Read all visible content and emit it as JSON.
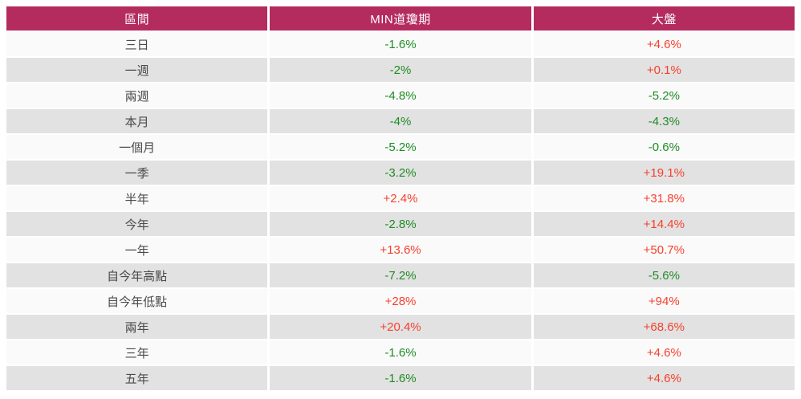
{
  "colors": {
    "header_bg": "#b42b5e",
    "header_text": "#ffffff",
    "up_red": "#f7402e",
    "down_green": "#1f8b24",
    "label_text": "#4a4a4a",
    "row_odd": "#fafafa",
    "row_even": "#e2e2e2"
  },
  "table": {
    "columns": [
      "區間",
      "MIN道瓊期",
      "大盤"
    ],
    "rows": [
      {
        "label": "三日",
        "min_dow": "-1.6%",
        "market": "+4.6%"
      },
      {
        "label": "一週",
        "min_dow": "-2%",
        "market": "+0.1%"
      },
      {
        "label": "兩週",
        "min_dow": "-4.8%",
        "market": "-5.2%"
      },
      {
        "label": "本月",
        "min_dow": "-4%",
        "market": "-4.3%"
      },
      {
        "label": "一個月",
        "min_dow": "-5.2%",
        "market": "-0.6%"
      },
      {
        "label": "一季",
        "min_dow": "-3.2%",
        "market": "+19.1%"
      },
      {
        "label": "半年",
        "min_dow": "+2.4%",
        "market": "+31.8%"
      },
      {
        "label": "今年",
        "min_dow": "-2.8%",
        "market": "+14.4%"
      },
      {
        "label": "一年",
        "min_dow": "+13.6%",
        "market": "+50.7%"
      },
      {
        "label": "自今年高點",
        "min_dow": "-7.2%",
        "market": "-5.6%"
      },
      {
        "label": "自今年低點",
        "min_dow": "+28%",
        "market": "+94%"
      },
      {
        "label": "兩年",
        "min_dow": "+20.4%",
        "market": "+68.6%"
      },
      {
        "label": "三年",
        "min_dow": "-1.6%",
        "market": "+4.6%"
      },
      {
        "label": "五年",
        "min_dow": "-1.6%",
        "market": "+4.6%"
      }
    ]
  },
  "chart_data": {
    "type": "table",
    "title": "",
    "categories": [
      "三日",
      "一週",
      "兩週",
      "本月",
      "一個月",
      "一季",
      "半年",
      "今年",
      "一年",
      "自今年高點",
      "自今年低點",
      "兩年",
      "三年",
      "五年"
    ],
    "series": [
      {
        "name": "MIN道瓊期",
        "values": [
          -1.6,
          -2,
          -4.8,
          -4,
          -5.2,
          -3.2,
          2.4,
          -2.8,
          13.6,
          -7.2,
          28,
          20.4,
          -1.6,
          -1.6
        ]
      },
      {
        "name": "大盤",
        "values": [
          4.6,
          0.1,
          -5.2,
          -4.3,
          -0.6,
          19.1,
          31.8,
          14.4,
          50.7,
          -5.6,
          94,
          68.6,
          4.6,
          4.6
        ]
      }
    ],
    "unit": "%"
  }
}
